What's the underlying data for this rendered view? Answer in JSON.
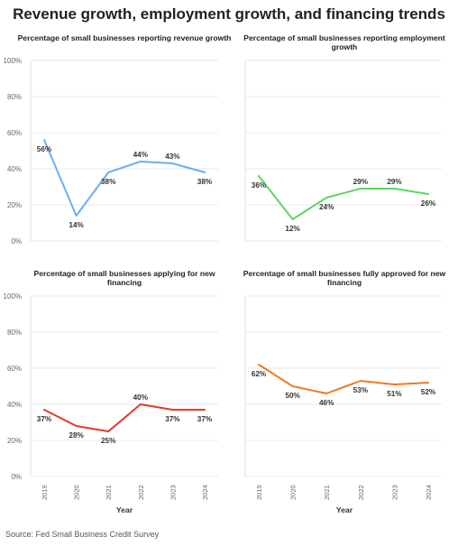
{
  "title": "Revenue growth, employment growth, and financing trends",
  "source": "Source: Fed Small Business Credit Survey",
  "chart_data": [
    {
      "type": "line",
      "title": "Percentage of small businesses reporting revenue growth",
      "x": [
        "2019",
        "2020",
        "2021",
        "2022",
        "2023",
        "2024"
      ],
      "values": [
        56,
        14,
        38,
        44,
        43,
        38
      ],
      "data_labels": [
        "56%",
        "14%",
        "38%",
        "44%",
        "43%",
        "38%"
      ],
      "color": "#6aaef0",
      "ylim": [
        0,
        100
      ],
      "yticks": [
        "0%",
        "20%",
        "40%",
        "60%",
        "80%",
        "100%"
      ],
      "xlabel": "",
      "grid": true
    },
    {
      "type": "line",
      "title": "Percentage of small businesses reporting employment growth",
      "x": [
        "2019",
        "2020",
        "2021",
        "2022",
        "2023",
        "2024"
      ],
      "values": [
        36,
        12,
        24,
        29,
        29,
        26
      ],
      "data_labels": [
        "36%",
        "12%",
        "24%",
        "29%",
        "29%",
        "26%"
      ],
      "color": "#5ed65e",
      "ylim": [
        0,
        100
      ],
      "yticks": [],
      "xlabel": "",
      "grid": true
    },
    {
      "type": "line",
      "title": "Percentage of small businesses applying for new financing",
      "x": [
        "2019",
        "2020",
        "2021",
        "2022",
        "2023",
        "2024"
      ],
      "values": [
        37,
        28,
        25,
        40,
        37,
        37
      ],
      "data_labels": [
        "37%",
        "28%",
        "25%",
        "40%",
        "37%",
        "37%"
      ],
      "color": "#e8372b",
      "ylim": [
        0,
        100
      ],
      "yticks": [
        "0%",
        "20%",
        "40%",
        "60%",
        "80%",
        "100%"
      ],
      "xticks": [
        "2019",
        "2020",
        "2021",
        "2022",
        "2023",
        "2024"
      ],
      "xlabel": "Year",
      "grid": true
    },
    {
      "type": "line",
      "title": "Percentage of small businesses fully approved for new financing",
      "x": [
        "2019",
        "2020",
        "2021",
        "2022",
        "2023",
        "2024"
      ],
      "values": [
        62,
        50,
        46,
        53,
        51,
        52
      ],
      "data_labels": [
        "62%",
        "50%",
        "46%",
        "53%",
        "51%",
        "52%"
      ],
      "color": "#f07a21",
      "ylim": [
        0,
        100
      ],
      "yticks": [],
      "xticks": [
        "2019",
        "2020",
        "2021",
        "2022",
        "2023",
        "2024"
      ],
      "xlabel": "Year",
      "grid": true
    }
  ]
}
